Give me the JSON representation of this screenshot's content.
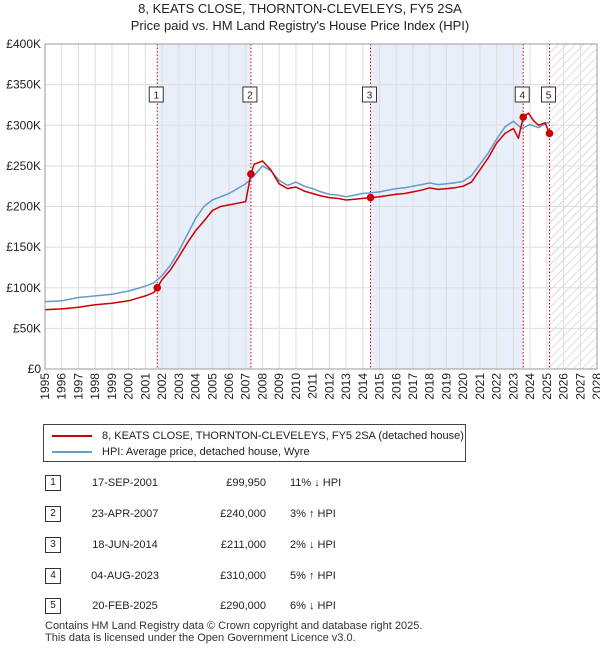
{
  "title": {
    "line1": "8, KEATS CLOSE, THORNTON-CLEVELEYS, FY5 2SA",
    "line2": "Price paid vs. HM Land Registry's House Price Index (HPI)"
  },
  "colors": {
    "property": "#cc0000",
    "hpi": "#6699cc",
    "shade": "#e8eefa",
    "grid": "#dddddd",
    "vline": "#cc0000"
  },
  "chart_data": {
    "type": "line",
    "title": "Price paid vs. HM Land Registry's House Price Index (HPI)",
    "xlabel": "",
    "ylabel": "",
    "xlim": [
      1995,
      2028
    ],
    "ylim": [
      0,
      400000
    ],
    "grid": true,
    "y_ticks": [
      {
        "value": 0,
        "label": "£0"
      },
      {
        "value": 50000,
        "label": "£50K"
      },
      {
        "value": 100000,
        "label": "£100K"
      },
      {
        "value": 150000,
        "label": "£150K"
      },
      {
        "value": 200000,
        "label": "£200K"
      },
      {
        "value": 250000,
        "label": "£250K"
      },
      {
        "value": 300000,
        "label": "£300K"
      },
      {
        "value": 350000,
        "label": "£350K"
      },
      {
        "value": 400000,
        "label": "£400K"
      }
    ],
    "x_ticks": [
      "1995",
      "1996",
      "1997",
      "1998",
      "1999",
      "2000",
      "2001",
      "2002",
      "2003",
      "2004",
      "2005",
      "2006",
      "2007",
      "2008",
      "2009",
      "2010",
      "2011",
      "2012",
      "2013",
      "2014",
      "2015",
      "2016",
      "2017",
      "2018",
      "2019",
      "2020",
      "2021",
      "2022",
      "2023",
      "2024",
      "2025",
      "2026",
      "2027",
      "2028"
    ],
    "shaded_ranges": [
      [
        2001.71,
        2007.31
      ],
      [
        2014.46,
        2023.59
      ]
    ],
    "future_hatch_from": 2025.2,
    "series": [
      {
        "name": "8, KEATS CLOSE, THORNTON-CLEVELEYS, FY5 2SA (detached house)",
        "x": [
          1995.0,
          1995.5,
          1996.0,
          1996.5,
          1997.0,
          1997.5,
          1998.0,
          1998.5,
          1999.0,
          1999.5,
          2000.0,
          2000.5,
          2001.0,
          2001.5,
          2001.71,
          2002.0,
          2002.5,
          2003.0,
          2003.5,
          2004.0,
          2004.5,
          2005.0,
          2005.5,
          2006.0,
          2006.5,
          2007.0,
          2007.31,
          2007.5,
          2008.0,
          2008.5,
          2009.0,
          2009.5,
          2010.0,
          2010.5,
          2011.0,
          2011.5,
          2012.0,
          2012.5,
          2013.0,
          2013.5,
          2014.0,
          2014.46,
          2015.0,
          2015.5,
          2016.0,
          2016.5,
          2017.0,
          2017.5,
          2018.0,
          2018.5,
          2019.0,
          2019.5,
          2020.0,
          2020.5,
          2021.0,
          2021.5,
          2022.0,
          2022.5,
          2023.0,
          2023.3,
          2023.59,
          2023.9,
          2024.2,
          2024.5,
          2024.9,
          2025.16
        ],
        "values": [
          73000,
          73500,
          74000,
          75000,
          76000,
          77500,
          79000,
          80000,
          81000,
          82500,
          84000,
          87000,
          90000,
          94000,
          99950,
          110000,
          122000,
          138000,
          155000,
          170000,
          182000,
          195000,
          200000,
          202000,
          204000,
          206000,
          240000,
          252000,
          256000,
          245000,
          228000,
          222000,
          224000,
          219000,
          216000,
          213000,
          211000,
          210000,
          208000,
          209000,
          210000,
          211000,
          212000,
          213500,
          215000,
          216000,
          218000,
          220000,
          223000,
          221000,
          222000,
          223000,
          225000,
          230000,
          245000,
          260000,
          278000,
          290000,
          296000,
          284000,
          310000,
          315000,
          306000,
          300000,
          303000,
          290000
        ]
      },
      {
        "name": "HPI: Average price, detached house, Wyre",
        "x": [
          1995.0,
          1995.5,
          1996.0,
          1996.5,
          1997.0,
          1997.5,
          1998.0,
          1998.5,
          1999.0,
          1999.5,
          2000.0,
          2000.5,
          2001.0,
          2001.5,
          2002.0,
          2002.5,
          2003.0,
          2003.5,
          2004.0,
          2004.5,
          2005.0,
          2005.5,
          2006.0,
          2006.5,
          2007.0,
          2007.5,
          2008.0,
          2008.5,
          2009.0,
          2009.5,
          2010.0,
          2010.5,
          2011.0,
          2011.5,
          2012.0,
          2012.5,
          2013.0,
          2013.5,
          2014.0,
          2014.5,
          2015.0,
          2015.5,
          2016.0,
          2016.5,
          2017.0,
          2017.5,
          2018.0,
          2018.5,
          2019.0,
          2019.5,
          2020.0,
          2020.5,
          2021.0,
          2021.5,
          2022.0,
          2022.5,
          2023.0,
          2023.5,
          2024.0,
          2024.5,
          2025.0,
          2025.16
        ],
        "values": [
          83000,
          83500,
          84000,
          86000,
          88000,
          89000,
          90000,
          91000,
          92000,
          94000,
          96000,
          99000,
          102000,
          106000,
          115000,
          128000,
          145000,
          165000,
          185000,
          200000,
          208000,
          212000,
          216000,
          222000,
          228000,
          238000,
          250000,
          244000,
          232000,
          226000,
          230000,
          225000,
          222000,
          218000,
          215000,
          214000,
          212000,
          214000,
          216000,
          217000,
          218000,
          220000,
          222000,
          223000,
          225000,
          227000,
          229000,
          227000,
          228000,
          229000,
          231000,
          238000,
          252000,
          266000,
          283000,
          298000,
          305000,
          296000,
          301000,
          297000,
          303000,
          303000
        ]
      }
    ],
    "sales": [
      {
        "label": "1",
        "x": 2001.71,
        "price": 99950
      },
      {
        "label": "2",
        "x": 2007.31,
        "price": 240000
      },
      {
        "label": "3",
        "x": 2014.46,
        "price": 211000
      },
      {
        "label": "4",
        "x": 2023.59,
        "price": 310000
      },
      {
        "label": "5",
        "x": 2025.16,
        "price": 290000
      }
    ]
  },
  "legend": {
    "property_label": "8, KEATS CLOSE, THORNTON-CLEVELEYS, FY5 2SA (detached house)",
    "hpi_label": "HPI: Average price, detached house, Wyre"
  },
  "transactions": [
    {
      "num": "1",
      "date": "17-SEP-2001",
      "price": "£99,950",
      "hpi": "11% ↓ HPI"
    },
    {
      "num": "2",
      "date": "23-APR-2007",
      "price": "£240,000",
      "hpi": "3% ↑ HPI"
    },
    {
      "num": "3",
      "date": "18-JUN-2014",
      "price": "£211,000",
      "hpi": "2% ↓ HPI"
    },
    {
      "num": "4",
      "date": "04-AUG-2023",
      "price": "£310,000",
      "hpi": "5% ↑ HPI"
    },
    {
      "num": "5",
      "date": "20-FEB-2025",
      "price": "£290,000",
      "hpi": "6% ↓ HPI"
    }
  ],
  "footer": {
    "line1": "Contains HM Land Registry data © Crown copyright and database right 2025.",
    "line2": "This data is licensed under the Open Government Licence v3.0."
  }
}
